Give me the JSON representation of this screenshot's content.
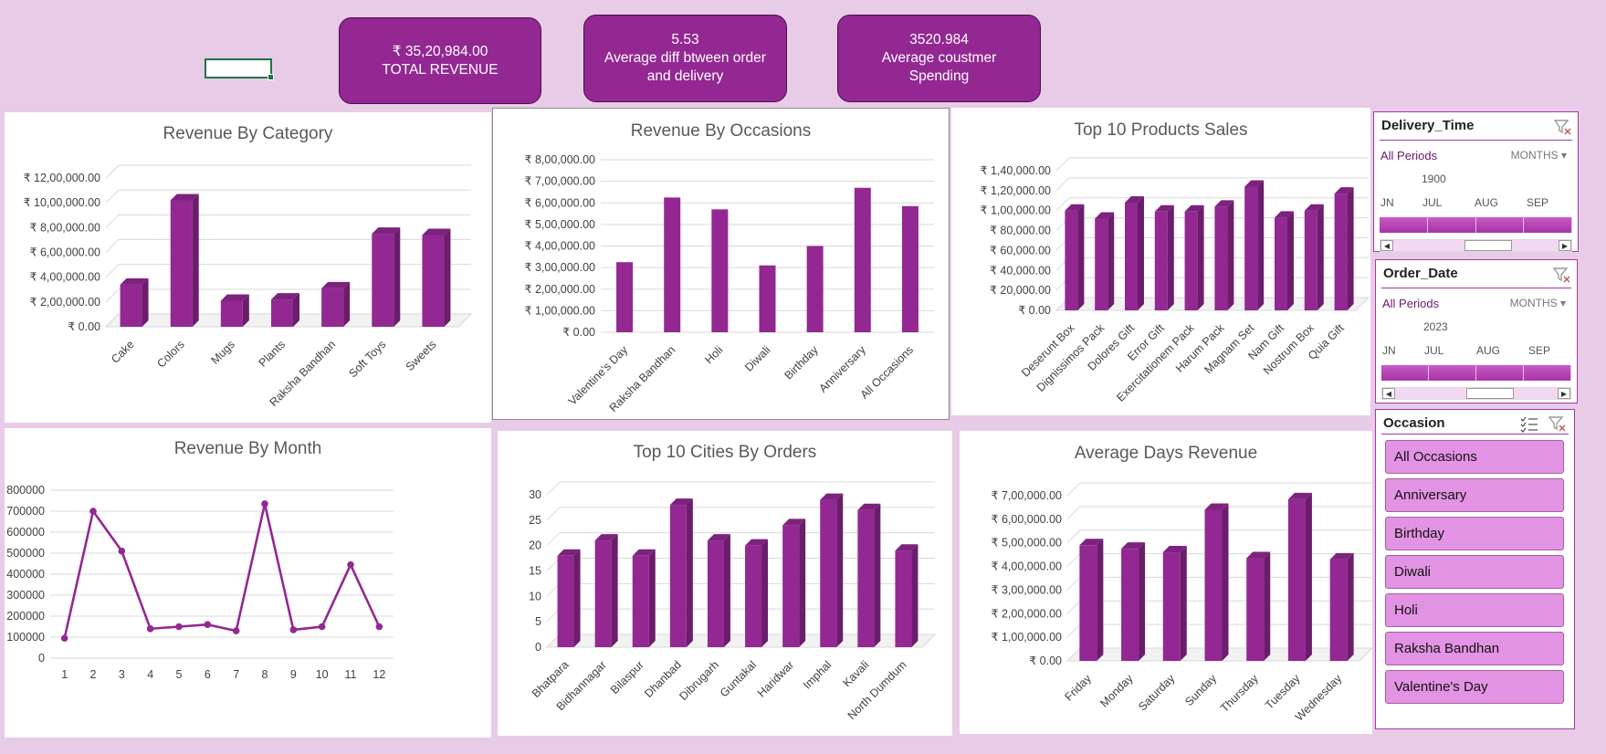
{
  "kpis": [
    {
      "value": "₹ 35,20,984.00",
      "label": "TOTAL REVENUE"
    },
    {
      "value": "5.53",
      "label": "Average diff btween order and delivery"
    },
    {
      "value": "3520.984",
      "label": "Average coustmer Spending"
    }
  ],
  "colors": {
    "accent": "#932893",
    "bar_face": "#932893",
    "bar_side": "#6b1d6b",
    "background": "#e8cbe6"
  },
  "chart_data": [
    {
      "id": "category",
      "type": "bar",
      "title": "Revenue By Category",
      "categories": [
        "Cake",
        "Colors",
        "Mugs",
        "Plants",
        "Raksha Bandhan",
        "Soft Toys",
        "Sweets"
      ],
      "values": [
        340000,
        1020000,
        210000,
        220000,
        310000,
        750000,
        740000
      ],
      "ylim": [
        0,
        1200000
      ],
      "yticks": [
        "₹ 0.00",
        "₹ 2,00,000.00",
        "₹ 4,00,000.00",
        "₹ 6,00,000.00",
        "₹ 8,00,000.00",
        "₹ 10,00,000.00",
        "₹ 12,00,000.00"
      ],
      "grid": true
    },
    {
      "id": "occasion",
      "type": "bar",
      "title": "Revenue By Occasions",
      "categories": [
        "Valentine's Day",
        "Raksha Bandhan",
        "Holi",
        "Diwali",
        "Birthday",
        "Anniversary",
        "All Occasions"
      ],
      "values": [
        325000,
        625000,
        570000,
        310000,
        400000,
        670000,
        585000
      ],
      "ylim": [
        0,
        800000
      ],
      "yticks": [
        "₹ 0.00",
        "₹ 1,00,000.00",
        "₹ 2,00,000.00",
        "₹ 3,00,000.00",
        "₹ 4,00,000.00",
        "₹ 5,00,000.00",
        "₹ 6,00,000.00",
        "₹ 7,00,000.00",
        "₹ 8,00,000.00"
      ],
      "grid": true
    },
    {
      "id": "products",
      "type": "bar",
      "title": "Top 10 Products Sales",
      "categories": [
        "Deserunt Box",
        "Dignissimos Pack",
        "Dolores Gift",
        "Error Gift",
        "Exercitationem Pack",
        "Harum Pack",
        "Magnam Set",
        "Nam Gift",
        "Nostrum Box",
        "Quia Gift"
      ],
      "values": [
        100000,
        92000,
        108000,
        99000,
        99000,
        104000,
        124000,
        93000,
        100000,
        117000
      ],
      "ylim": [
        0,
        140000
      ],
      "yticks": [
        "₹ 0.00",
        "₹ 20,000.00",
        "₹ 40,000.00",
        "₹ 60,000.00",
        "₹ 80,000.00",
        "₹ 1,00,000.00",
        "₹ 1,20,000.00",
        "₹ 1,40,000.00"
      ],
      "grid": true
    },
    {
      "id": "month",
      "type": "line",
      "title": "Revenue By Month",
      "categories": [
        "1",
        "2",
        "3",
        "4",
        "5",
        "6",
        "7",
        "8",
        "9",
        "10",
        "11",
        "12"
      ],
      "values": [
        95000,
        700000,
        510000,
        140000,
        150000,
        160000,
        130000,
        735000,
        135000,
        150000,
        445000,
        150000
      ],
      "ylim": [
        0,
        800000
      ],
      "yticks": [
        "0",
        "100000",
        "200000",
        "300000",
        "400000",
        "500000",
        "600000",
        "700000",
        "800000"
      ],
      "grid": true
    },
    {
      "id": "cities",
      "type": "bar",
      "title": "Top 10 Cities By Orders",
      "categories": [
        "Bhatpara",
        "Bidhannagar",
        "Bilaspur",
        "Dhanbad",
        "Dibrugarh",
        "Guntakal",
        "Haridwar",
        "Imphal",
        "Kavali",
        "North Dumdum"
      ],
      "values": [
        18,
        21,
        18,
        28,
        21,
        20,
        24,
        29,
        27,
        19
      ],
      "ylim": [
        0,
        30
      ],
      "yticks": [
        "0",
        "5",
        "10",
        "15",
        "20",
        "25",
        "30"
      ],
      "grid": true
    },
    {
      "id": "days",
      "type": "bar",
      "title": "Average Days Revenue",
      "categories": [
        "Friday",
        "Monday",
        "Saturday",
        "Sunday",
        "Thursday",
        "Tuesday",
        "Wednesday"
      ],
      "values": [
        490000,
        475000,
        460000,
        640000,
        435000,
        685000,
        430000
      ],
      "ylim": [
        0,
        700000
      ],
      "yticks": [
        "₹ 0.00",
        "₹ 1,00,000.00",
        "₹ 2,00,000.00",
        "₹ 3,00,000.00",
        "₹ 4,00,000.00",
        "₹ 5,00,000.00",
        "₹ 6,00,000.00",
        "₹ 7,00,000.00"
      ],
      "grid": true
    }
  ],
  "slicers": {
    "delivery": {
      "title": "Delivery_Time",
      "all_periods": "All Periods",
      "level": "MONTHS",
      "year": "1900",
      "months": [
        "JN",
        "JUL",
        "AUG",
        "SEP"
      ]
    },
    "order": {
      "title": "Order_Date",
      "all_periods": "All Periods",
      "level": "MONTHS",
      "year": "2023",
      "months": [
        "JN",
        "JUL",
        "AUG",
        "SEP"
      ]
    },
    "occasion": {
      "title": "Occasion",
      "items": [
        "All Occasions",
        "Anniversary",
        "Birthday",
        "Diwali",
        "Holi",
        "Raksha Bandhan",
        "Valentine's Day"
      ],
      "icons": [
        "multi-select-icon",
        "clear-filter-icon"
      ]
    }
  }
}
